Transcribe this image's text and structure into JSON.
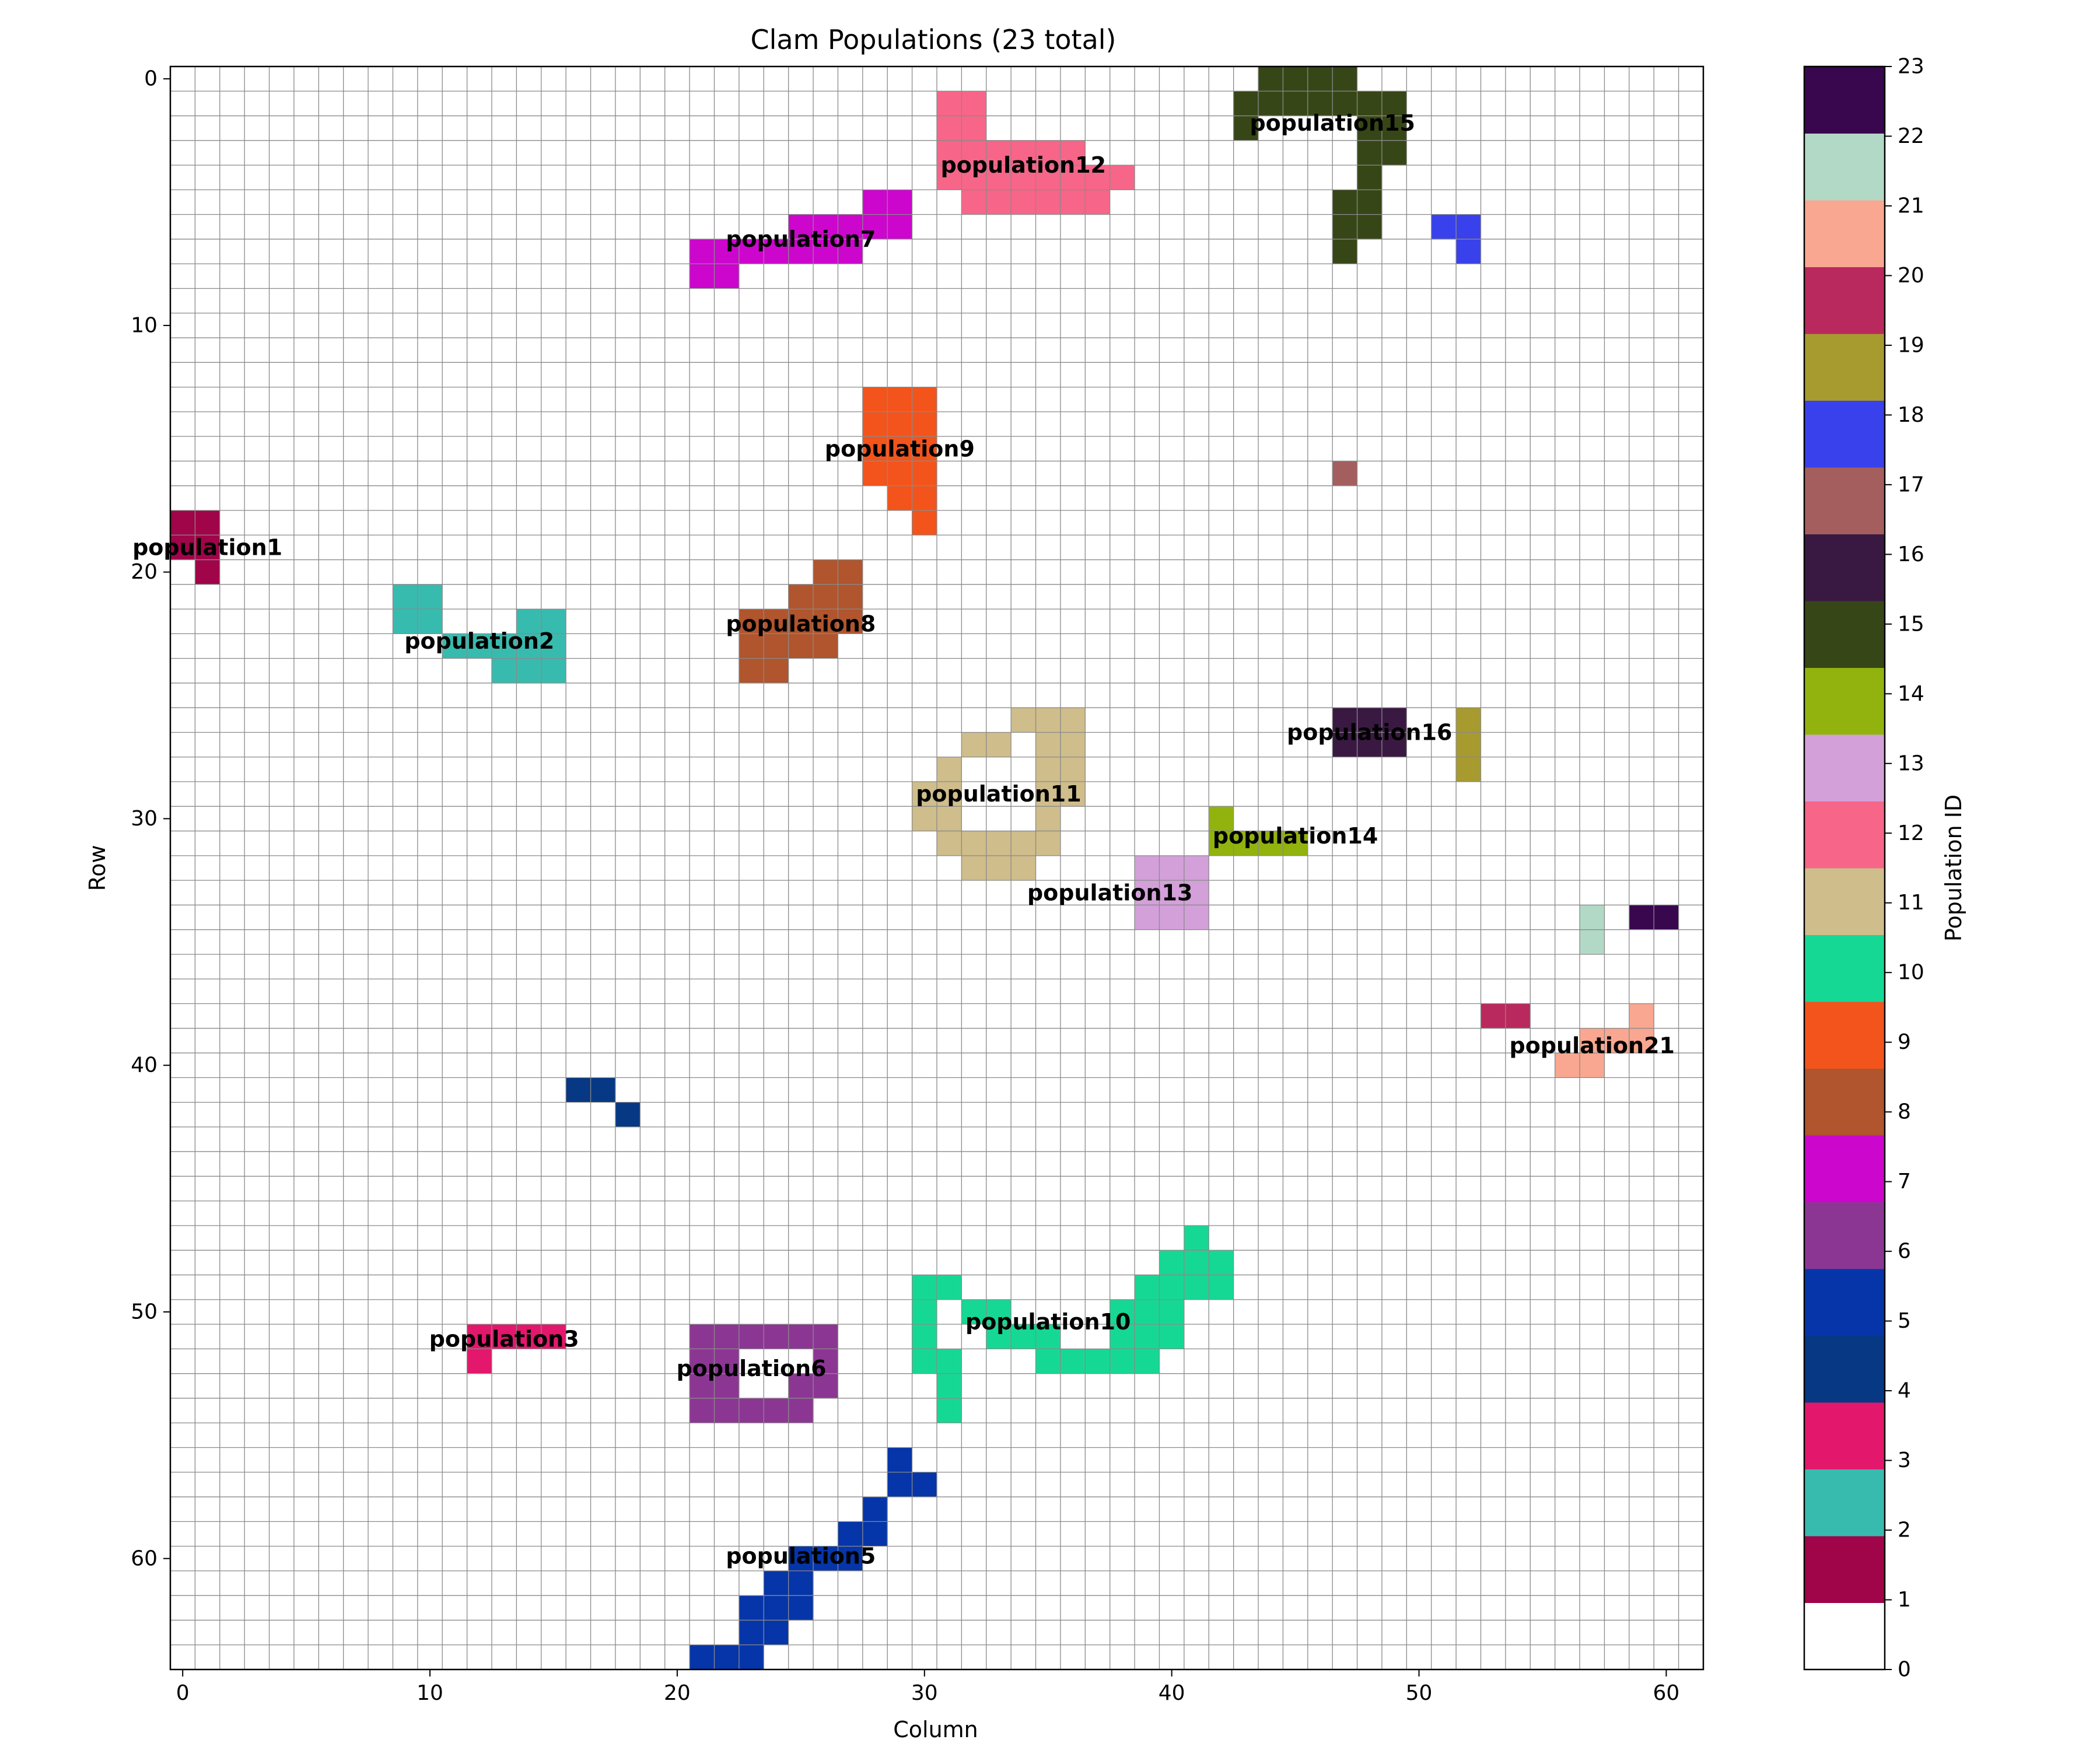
{
  "chart_data": {
    "type": "heatmap",
    "title": "Clam Populations (23 total)",
    "xlabel": "Column",
    "ylabel": "Row",
    "xlim": [
      0,
      61
    ],
    "ylim": [
      0,
      64
    ],
    "grid": true,
    "x_ticks": [
      "0",
      "10",
      "20",
      "30",
      "40",
      "50",
      "60"
    ],
    "y_ticks": [
      "0",
      "10",
      "20",
      "30",
      "40",
      "50",
      "60"
    ],
    "colorbar": {
      "label": "Population ID",
      "ticks": [
        "0",
        "1",
        "2",
        "3",
        "4",
        "5",
        "6",
        "7",
        "8",
        "9",
        "10",
        "11",
        "12",
        "13",
        "14",
        "15",
        "16",
        "17",
        "18",
        "19",
        "20",
        "21",
        "22",
        "23"
      ],
      "colors": [
        "#ffffff",
        "#a00449",
        "#38bbaf",
        "#e3176c",
        "#063884",
        "#0535a8",
        "#8c3693",
        "#cc06cc",
        "#b0552d",
        "#f3541b",
        "#16d895",
        "#cfbd8b",
        "#f76588",
        "#d3a0d9",
        "#92b30e",
        "#374616",
        "#391942",
        "#a55e5e",
        "#3841eb",
        "#a79a2f",
        "#ba295d",
        "#f9a791",
        "#b2d9c6",
        "#38074e"
      ]
    },
    "populations": [
      {
        "id": 1,
        "label": "population1",
        "label_at": [
          1,
          19
        ],
        "cells": [
          [
            0,
            18
          ],
          [
            1,
            18
          ],
          [
            0,
            19
          ],
          [
            1,
            19
          ],
          [
            1,
            20
          ]
        ]
      },
      {
        "id": 2,
        "label": "population2",
        "label_at": [
          12,
          22.8
        ],
        "cells": [
          [
            9,
            21
          ],
          [
            10,
            21
          ],
          [
            9,
            22
          ],
          [
            10,
            22
          ],
          [
            14,
            22
          ],
          [
            15,
            22
          ],
          [
            11,
            23
          ],
          [
            12,
            23
          ],
          [
            13,
            23
          ],
          [
            14,
            23
          ],
          [
            15,
            23
          ],
          [
            13,
            24
          ],
          [
            14,
            24
          ],
          [
            15,
            24
          ]
        ]
      },
      {
        "id": 3,
        "label": "population3",
        "label_at": [
          13,
          51.1
        ],
        "cells": [
          [
            12,
            51
          ],
          [
            13,
            51
          ],
          [
            14,
            51
          ],
          [
            15,
            51
          ],
          [
            12,
            52
          ]
        ]
      },
      {
        "id": 4,
        "label": "",
        "label_at": null,
        "cells": [
          [
            16,
            41
          ],
          [
            17,
            41
          ],
          [
            18,
            42
          ]
        ]
      },
      {
        "id": 5,
        "label": "population5",
        "label_at": [
          25,
          59.9
        ],
        "cells": [
          [
            29,
            56
          ],
          [
            29,
            57
          ],
          [
            30,
            57
          ],
          [
            28,
            58
          ],
          [
            27,
            59
          ],
          [
            28,
            59
          ],
          [
            25,
            60
          ],
          [
            26,
            60
          ],
          [
            27,
            60
          ],
          [
            24,
            61
          ],
          [
            25,
            61
          ],
          [
            23,
            62
          ],
          [
            24,
            62
          ],
          [
            25,
            62
          ],
          [
            23,
            63
          ],
          [
            24,
            63
          ],
          [
            21,
            64
          ],
          [
            22,
            64
          ],
          [
            23,
            64
          ],
          [
            21,
            65
          ]
        ]
      },
      {
        "id": 6,
        "label": "population6",
        "label_at": [
          23,
          52.3
        ],
        "cells": [
          [
            21,
            51
          ],
          [
            22,
            51
          ],
          [
            23,
            51
          ],
          [
            24,
            51
          ],
          [
            25,
            51
          ],
          [
            26,
            51
          ],
          [
            21,
            52
          ],
          [
            22,
            52
          ],
          [
            26,
            52
          ],
          [
            21,
            53
          ],
          [
            22,
            53
          ],
          [
            25,
            53
          ],
          [
            26,
            53
          ],
          [
            21,
            54
          ],
          [
            22,
            54
          ],
          [
            23,
            54
          ],
          [
            24,
            54
          ],
          [
            25,
            54
          ]
        ]
      },
      {
        "id": 7,
        "label": "population7",
        "label_at": [
          25,
          6.5
        ],
        "cells": [
          [
            28,
            5
          ],
          [
            29,
            5
          ],
          [
            25,
            6
          ],
          [
            26,
            6
          ],
          [
            27,
            6
          ],
          [
            28,
            6
          ],
          [
            29,
            6
          ],
          [
            21,
            7
          ],
          [
            22,
            7
          ],
          [
            23,
            7
          ],
          [
            24,
            7
          ],
          [
            25,
            7
          ],
          [
            26,
            7
          ],
          [
            27,
            7
          ],
          [
            21,
            8
          ],
          [
            22,
            8
          ]
        ]
      },
      {
        "id": 8,
        "label": "population8",
        "label_at": [
          25,
          22.1
        ],
        "cells": [
          [
            26,
            20
          ],
          [
            27,
            20
          ],
          [
            25,
            21
          ],
          [
            26,
            21
          ],
          [
            27,
            21
          ],
          [
            23,
            22
          ],
          [
            24,
            22
          ],
          [
            25,
            22
          ],
          [
            26,
            22
          ],
          [
            27,
            22
          ],
          [
            23,
            23
          ],
          [
            24,
            23
          ],
          [
            25,
            23
          ],
          [
            26,
            23
          ],
          [
            23,
            24
          ],
          [
            24,
            24
          ]
        ]
      },
      {
        "id": 9,
        "label": "population9",
        "label_at": [
          29,
          15
        ],
        "cells": [
          [
            28,
            13
          ],
          [
            29,
            13
          ],
          [
            30,
            13
          ],
          [
            28,
            14
          ],
          [
            29,
            14
          ],
          [
            30,
            14
          ],
          [
            28,
            15
          ],
          [
            29,
            15
          ],
          [
            30,
            15
          ],
          [
            28,
            16
          ],
          [
            29,
            16
          ],
          [
            30,
            16
          ],
          [
            29,
            17
          ],
          [
            30,
            17
          ],
          [
            30,
            18
          ]
        ]
      },
      {
        "id": 10,
        "label": "population10",
        "label_at": [
          35,
          50.4
        ],
        "cells": [
          [
            41,
            47
          ],
          [
            40,
            48
          ],
          [
            41,
            48
          ],
          [
            42,
            48
          ],
          [
            30,
            49
          ],
          [
            31,
            49
          ],
          [
            39,
            49
          ],
          [
            40,
            49
          ],
          [
            41,
            49
          ],
          [
            42,
            49
          ],
          [
            30,
            50
          ],
          [
            32,
            50
          ],
          [
            33,
            50
          ],
          [
            38,
            50
          ],
          [
            39,
            50
          ],
          [
            40,
            50
          ],
          [
            30,
            51
          ],
          [
            33,
            51
          ],
          [
            34,
            51
          ],
          [
            35,
            51
          ],
          [
            38,
            51
          ],
          [
            39,
            51
          ],
          [
            40,
            51
          ],
          [
            30,
            52
          ],
          [
            31,
            52
          ],
          [
            35,
            52
          ],
          [
            36,
            52
          ],
          [
            37,
            52
          ],
          [
            38,
            52
          ],
          [
            39,
            52
          ],
          [
            31,
            53
          ],
          [
            31,
            54
          ]
        ]
      },
      {
        "id": 11,
        "label": "population11",
        "label_at": [
          33,
          29
        ],
        "cells": [
          [
            34,
            26
          ],
          [
            35,
            26
          ],
          [
            36,
            26
          ],
          [
            32,
            27
          ],
          [
            33,
            27
          ],
          [
            35,
            27
          ],
          [
            36,
            27
          ],
          [
            31,
            28
          ],
          [
            35,
            28
          ],
          [
            36,
            28
          ],
          [
            30,
            29
          ],
          [
            31,
            29
          ],
          [
            35,
            29
          ],
          [
            36,
            29
          ],
          [
            30,
            30
          ],
          [
            31,
            30
          ],
          [
            35,
            30
          ],
          [
            31,
            31
          ],
          [
            32,
            31
          ],
          [
            33,
            31
          ],
          [
            34,
            31
          ],
          [
            35,
            31
          ],
          [
            32,
            32
          ],
          [
            33,
            32
          ],
          [
            34,
            32
          ]
        ]
      },
      {
        "id": 12,
        "label": "population12",
        "label_at": [
          34,
          3.5
        ],
        "cells": [
          [
            31,
            1
          ],
          [
            32,
            1
          ],
          [
            31,
            2
          ],
          [
            32,
            2
          ],
          [
            31,
            3
          ],
          [
            32,
            3
          ],
          [
            33,
            3
          ],
          [
            34,
            3
          ],
          [
            35,
            3
          ],
          [
            36,
            3
          ],
          [
            31,
            4
          ],
          [
            32,
            4
          ],
          [
            33,
            4
          ],
          [
            34,
            4
          ],
          [
            35,
            4
          ],
          [
            36,
            4
          ],
          [
            37,
            4
          ],
          [
            38,
            4
          ],
          [
            32,
            5
          ],
          [
            33,
            5
          ],
          [
            34,
            5
          ],
          [
            35,
            5
          ],
          [
            36,
            5
          ],
          [
            37,
            5
          ]
        ]
      },
      {
        "id": 13,
        "label": "population13",
        "label_at": [
          37.5,
          33
        ],
        "cells": [
          [
            39,
            32
          ],
          [
            40,
            32
          ],
          [
            41,
            32
          ],
          [
            39,
            33
          ],
          [
            40,
            33
          ],
          [
            41,
            33
          ],
          [
            39,
            34
          ],
          [
            40,
            34
          ],
          [
            41,
            34
          ]
        ]
      },
      {
        "id": 14,
        "label": "population14",
        "label_at": [
          45,
          30.7
        ],
        "cells": [
          [
            42,
            30
          ],
          [
            42,
            31
          ],
          [
            43,
            31
          ],
          [
            44,
            31
          ],
          [
            45,
            31
          ]
        ]
      },
      {
        "id": 15,
        "label": "population15",
        "label_at": [
          46.5,
          1.8
        ],
        "cells": [
          [
            44,
            0
          ],
          [
            45,
            0
          ],
          [
            46,
            0
          ],
          [
            47,
            0
          ],
          [
            43,
            1
          ],
          [
            44,
            1
          ],
          [
            45,
            1
          ],
          [
            46,
            1
          ],
          [
            47,
            1
          ],
          [
            48,
            1
          ],
          [
            49,
            1
          ],
          [
            43,
            2
          ],
          [
            48,
            2
          ],
          [
            49,
            2
          ],
          [
            48,
            3
          ],
          [
            49,
            3
          ],
          [
            48,
            4
          ],
          [
            47,
            5
          ],
          [
            48,
            5
          ],
          [
            47,
            6
          ],
          [
            48,
            6
          ],
          [
            47,
            7
          ]
        ]
      },
      {
        "id": 16,
        "label": "population16",
        "label_at": [
          48,
          26.5
        ],
        "cells": [
          [
            47,
            26
          ],
          [
            48,
            26
          ],
          [
            49,
            26
          ],
          [
            47,
            27
          ],
          [
            48,
            27
          ],
          [
            49,
            27
          ]
        ]
      },
      {
        "id": 17,
        "label": "",
        "label_at": null,
        "cells": [
          [
            47,
            16
          ]
        ]
      },
      {
        "id": 18,
        "label": "",
        "label_at": null,
        "cells": [
          [
            51,
            6
          ],
          [
            52,
            6
          ],
          [
            52,
            7
          ]
        ]
      },
      {
        "id": 19,
        "label": "",
        "label_at": null,
        "cells": [
          [
            52,
            26
          ],
          [
            52,
            27
          ],
          [
            52,
            28
          ]
        ]
      },
      {
        "id": 20,
        "label": "",
        "label_at": null,
        "cells": [
          [
            53,
            38
          ],
          [
            54,
            38
          ]
        ]
      },
      {
        "id": 21,
        "label": "population21",
        "label_at": [
          57,
          39.2
        ],
        "cells": [
          [
            59,
            38
          ],
          [
            57,
            39
          ],
          [
            58,
            39
          ],
          [
            59,
            39
          ],
          [
            56,
            40
          ],
          [
            57,
            40
          ]
        ]
      },
      {
        "id": 22,
        "label": "",
        "label_at": null,
        "cells": [
          [
            57,
            34
          ],
          [
            57,
            35
          ]
        ]
      },
      {
        "id": 23,
        "label": "",
        "label_at": null,
        "cells": [
          [
            59,
            34
          ],
          [
            60,
            34
          ]
        ]
      }
    ]
  }
}
